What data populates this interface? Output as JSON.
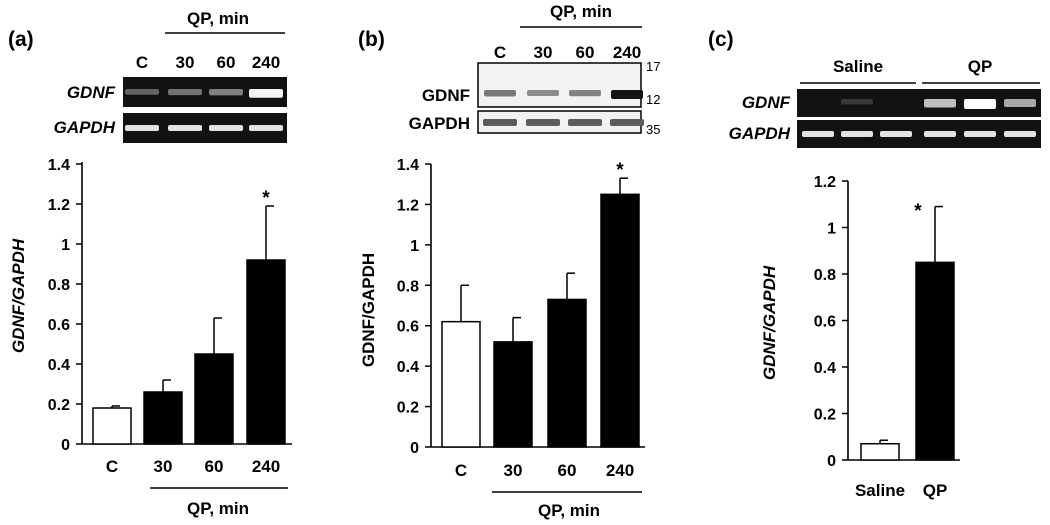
{
  "colors": {
    "ink": "#000000",
    "gel": "#121212",
    "band": "#e8e8e8",
    "blot": "#f2f2f2",
    "blot_band": "#5a5a5a",
    "open_bar": "#ffffff",
    "filled_bar": "#000000"
  },
  "chart_data": [
    {
      "type": "bar",
      "panel": "(a)",
      "blot_header": "QP, min",
      "lane_labels": [
        "C",
        "30",
        "60",
        "240"
      ],
      "gene_labels": [
        "GDNF",
        "GAPDH"
      ],
      "gdnf_band_intensity": [
        0.2,
        0.28,
        0.35,
        0.95
      ],
      "gapdh_band_intensity": [
        0.85,
        0.85,
        0.85,
        0.85
      ],
      "categories": [
        "C",
        "30",
        "60",
        "240"
      ],
      "values": [
        0.18,
        0.26,
        0.45,
        0.92
      ],
      "errors": [
        0.01,
        0.06,
        0.18,
        0.27
      ],
      "fills": [
        "open",
        "filled",
        "filled",
        "filled"
      ],
      "significance": [
        "",
        "",
        "",
        "*"
      ],
      "ylabel": "GDNF/GAPDH",
      "xlabel": "QP, min",
      "ylim": [
        0,
        1.4
      ],
      "yticks": [
        0,
        0.2,
        0.4,
        0.6,
        0.8,
        1,
        1.2,
        1.4
      ],
      "ytick_labels": [
        "0",
        "0.2",
        "0.4",
        "0.6",
        "0.8",
        "1",
        "1.2",
        "1.4"
      ],
      "grid": false
    },
    {
      "type": "bar",
      "panel": "(b)",
      "blot_header": "QP, min",
      "lane_labels": [
        "C",
        "30",
        "60",
        "240"
      ],
      "gene_labels": [
        "GDNF",
        "GAPDH"
      ],
      "marker_labels": [
        "17",
        "12",
        "35"
      ],
      "gdnf_band_intensity": [
        0.5,
        0.4,
        0.45,
        1.0
      ],
      "gapdh_band_intensity": [
        0.8,
        0.8,
        0.8,
        0.8
      ],
      "categories": [
        "C",
        "30",
        "60",
        "240"
      ],
      "values": [
        0.62,
        0.52,
        0.73,
        1.25
      ],
      "errors": [
        0.18,
        0.12,
        0.13,
        0.08
      ],
      "fills": [
        "open",
        "filled",
        "filled",
        "filled"
      ],
      "significance": [
        "",
        "",
        "",
        "*"
      ],
      "ylabel": "GDNF/GAPDH",
      "xlabel": "QP, min",
      "ylim": [
        0,
        1.4
      ],
      "yticks": [
        0,
        0.2,
        0.4,
        0.6,
        0.8,
        1,
        1.2,
        1.4
      ],
      "ytick_labels": [
        "0",
        "0.2",
        "0.4",
        "0.6",
        "0.8",
        "1",
        "1.2",
        "1.4"
      ],
      "grid": false
    },
    {
      "type": "bar",
      "panel": "(c)",
      "group_labels": [
        "Saline",
        "QP"
      ],
      "gene_labels": [
        "GDNF",
        "GAPDH"
      ],
      "gdnf_band_intensity": [
        0.0,
        0.08,
        0.0,
        0.7,
        1.0,
        0.6
      ],
      "gapdh_band_intensity": [
        0.85,
        0.85,
        0.85,
        0.85,
        0.85,
        0.85
      ],
      "categories": [
        "Saline",
        "QP"
      ],
      "values": [
        0.07,
        0.85
      ],
      "errors": [
        0.015,
        0.24
      ],
      "fills": [
        "open",
        "filled"
      ],
      "significance": [
        "",
        "*"
      ],
      "ylabel": "GDNF/GAPDH",
      "ylim": [
        0,
        1.2
      ],
      "yticks": [
        0,
        0.2,
        0.4,
        0.6,
        0.8,
        1,
        1.2
      ],
      "ytick_labels": [
        "0",
        "0.2",
        "0.4",
        "0.6",
        "0.8",
        "1",
        "1.2"
      ],
      "grid": false
    }
  ]
}
